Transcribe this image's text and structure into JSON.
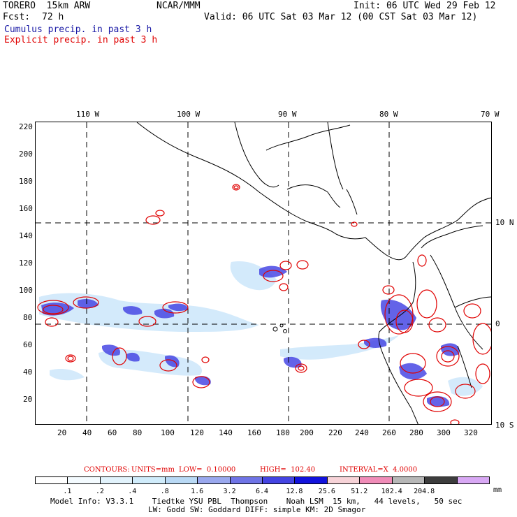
{
  "header": {
    "model": "TORERO  15km ARW",
    "org": "NCAR/MMM",
    "init": "Init: 06 UTC Wed 29 Feb 12",
    "fcst_label": "Fcst:",
    "fcst_value": "72 h",
    "valid": "Valid: 06 UTC Sat 03 Mar 12 (00 CST Sat 03 Mar 12)",
    "line_cumulus": "Cumulus precip. in past 3 h",
    "line_explicit": "Explicit precip. in past 3 h"
  },
  "colors": {
    "cumulus_text": "#1a1aa6",
    "explicit_text": "#e00000",
    "contour": "#e00000",
    "coast": "#000000"
  },
  "axes": {
    "top_lon": [
      "110 W",
      "100 W",
      "90 W",
      "80 W",
      "70 W"
    ],
    "right_lat": [
      "10 N",
      "0",
      "10 S"
    ],
    "left_y": [
      "220",
      "200",
      "180",
      "160",
      "140",
      "120",
      "100",
      "80",
      "60",
      "40",
      "20"
    ],
    "bottom_x": [
      "20",
      "40",
      "60",
      "80",
      "100",
      "120",
      "140",
      "160",
      "180",
      "200",
      "220",
      "240",
      "260",
      "280",
      "300",
      "320"
    ]
  },
  "contours_line": {
    "label": "CONTOURS:",
    "units": "UNITS=mm",
    "low": "LOW=  0.10000",
    "high": "HIGH=  102.40",
    "interval": "INTERVAL=X  4.0000"
  },
  "colorbar": {
    "colors": [
      "#ffffff",
      "#f4fbff",
      "#e2f3fc",
      "#d0ecfb",
      "#b9d9f5",
      "#9aa8ee",
      "#6f74e6",
      "#4444e2",
      "#1212dc",
      "#f7d3d8",
      "#f08cb8",
      "#b7b7b7",
      "#3d3d3d",
      "#d8a8f4"
    ],
    "labels": [
      ".1",
      ".2",
      ".4",
      ".8",
      "1.6",
      "3.2",
      "6.4",
      "12.8",
      "25.6",
      "51.2",
      "102.4",
      "204.8"
    ],
    "unit": "mm"
  },
  "footer": {
    "line1": "Model Info: V3.3.1    Tiedtke YSU PBL  Thompson    Noah LSM  15 km,   44 levels,   50 sec",
    "line2": "LW: Godd SW: Goddard DIFF: simple KM: 2D Smagor"
  }
}
